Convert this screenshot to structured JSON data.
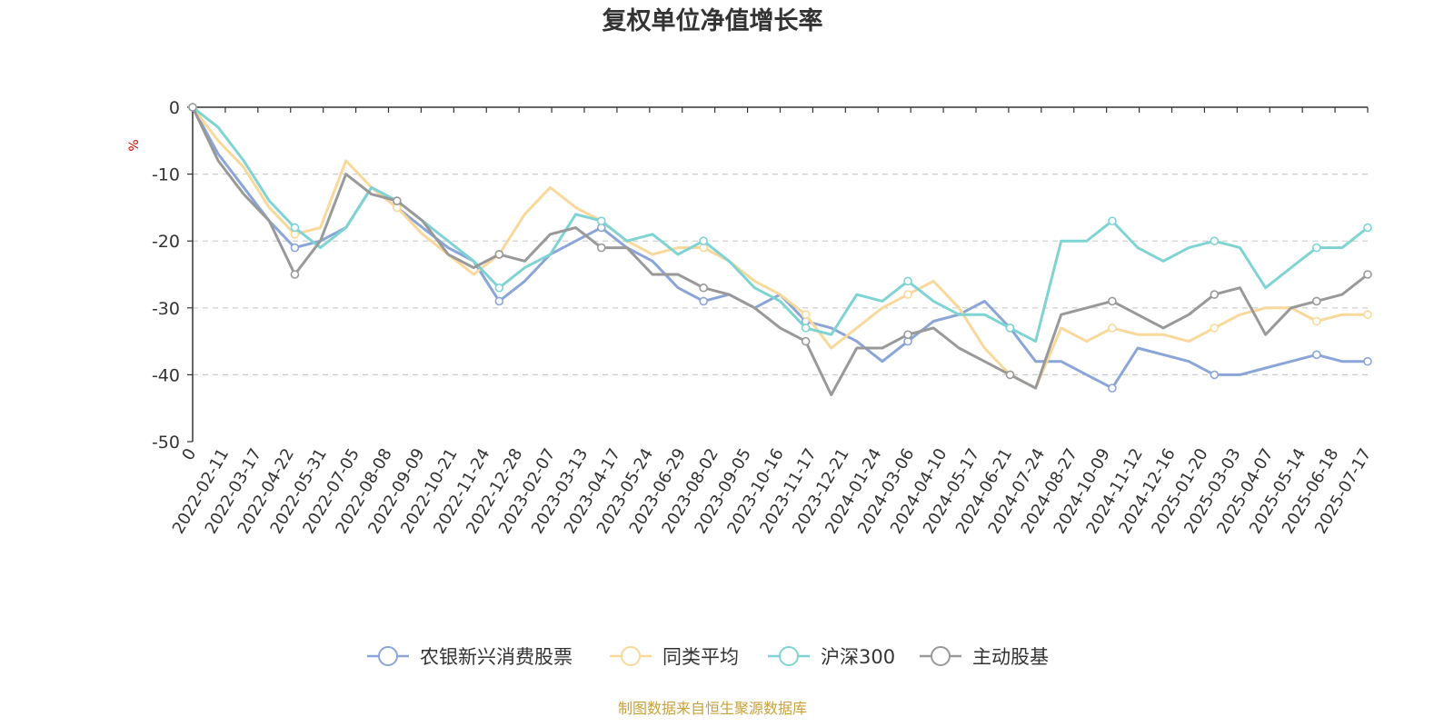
{
  "chart_data": {
    "type": "line",
    "title": "复权单位净值增长率",
    "ylabel": "%",
    "ylim": [
      -50,
      0
    ],
    "yticks": [
      0,
      -10,
      -20,
      -30,
      -40,
      -50
    ],
    "grid": true,
    "legend_position": "bottom",
    "x_tick_labels": [
      "0",
      "2022-02-11",
      "2022-03-17",
      "2022-04-22",
      "2022-05-31",
      "2022-07-05",
      "2022-08-08",
      "2022-09-09",
      "2022-10-21",
      "2022-11-24",
      "2022-12-28",
      "2023-02-07",
      "2023-03-13",
      "2023-04-17",
      "2023-05-24",
      "2023-06-29",
      "2023-08-02",
      "2023-09-05",
      "2023-10-16",
      "2023-11-17",
      "2023-12-21",
      "2024-01-24",
      "2024-03-06",
      "2024-04-10",
      "2024-05-17",
      "2024-06-21",
      "2024-07-24",
      "2024-08-27",
      "2024-10-09",
      "2024-11-12",
      "2024-12-16",
      "2025-01-20",
      "2025-03-03",
      "2025-04-07",
      "2025-05-14",
      "2025-06-18",
      "2025-07-17"
    ],
    "series": [
      {
        "name": "农银新兴消费股票",
        "color": "#8aa5d6",
        "values": [
          0,
          -7,
          -12,
          -17,
          -21,
          -20,
          -18,
          -12,
          -15,
          -18,
          -21,
          -23,
          -29,
          -26,
          -22,
          -20,
          -18,
          -21,
          -23,
          -27,
          -29,
          -28,
          -30,
          -28,
          -32,
          -33,
          -35,
          -38,
          -35,
          -32,
          -31,
          -29,
          -33,
          -38,
          -38,
          -40,
          -42,
          -36,
          -37,
          -38,
          -40,
          -40,
          -39,
          -38,
          -37,
          -38,
          -38
        ]
      },
      {
        "name": "同类平均",
        "color": "#f9d89b",
        "values": [
          0,
          -5,
          -9,
          -15,
          -19,
          -18,
          -8,
          -12,
          -15,
          -19,
          -22,
          -25,
          -22,
          -16,
          -12,
          -15,
          -17,
          -20,
          -22,
          -21,
          -21,
          -23,
          -26,
          -28,
          -31,
          -36,
          -33,
          -30,
          -28,
          -26,
          -30,
          -36,
          -40,
          -42,
          -33,
          -35,
          -33,
          -34,
          -34,
          -35,
          -33,
          -31,
          -30,
          -30,
          -32,
          -31,
          -31
        ]
      },
      {
        "name": "沪深300",
        "color": "#7fd3d3",
        "values": [
          0,
          -3,
          -8,
          -14,
          -18,
          -21,
          -18,
          -12,
          -14,
          -17,
          -20,
          -23,
          -27,
          -24,
          -22,
          -16,
          -17,
          -20,
          -19,
          -22,
          -20,
          -23,
          -27,
          -29,
          -33,
          -34,
          -28,
          -29,
          -26,
          -29,
          -31,
          -31,
          -33,
          -35,
          -20,
          -20,
          -17,
          -21,
          -23,
          -21,
          -20,
          -21,
          -27,
          -24,
          -21,
          -21,
          -18
        ]
      },
      {
        "name": "主动股基",
        "color": "#999999",
        "values": [
          0,
          -8,
          -13,
          -17,
          -25,
          -20,
          -10,
          -13,
          -14,
          -17,
          -22,
          -24,
          -22,
          -23,
          -19,
          -18,
          -21,
          -21,
          -25,
          -25,
          -27,
          -28,
          -30,
          -33,
          -35,
          -43,
          -36,
          -36,
          -34,
          -33,
          -36,
          -38,
          -40,
          -42,
          -31,
          -30,
          -29,
          -31,
          -33,
          -31,
          -28,
          -27,
          -34,
          -30,
          -29,
          -28,
          -25
        ]
      }
    ]
  },
  "source_note": "制图数据来自恒生聚源数据库"
}
